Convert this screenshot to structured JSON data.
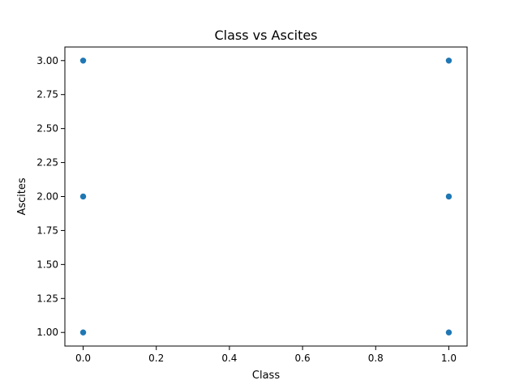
{
  "chart_data": {
    "type": "scatter",
    "title": "Class vs Ascites",
    "xlabel": "Class",
    "ylabel": "Ascites",
    "xlim": [
      -0.05,
      1.05
    ],
    "ylim": [
      0.9,
      3.1
    ],
    "xticks": [
      0.0,
      0.2,
      0.4,
      0.6,
      0.8,
      1.0
    ],
    "xtick_labels": [
      "0.0",
      "0.2",
      "0.4",
      "0.6",
      "0.8",
      "1.0"
    ],
    "yticks": [
      1.0,
      1.25,
      1.5,
      1.75,
      2.0,
      2.25,
      2.5,
      2.75,
      3.0
    ],
    "ytick_labels": [
      "1.00",
      "1.25",
      "1.50",
      "1.75",
      "2.00",
      "2.25",
      "2.50",
      "2.75",
      "3.00"
    ],
    "grid": false,
    "series": [
      {
        "color": "#1f77b4",
        "points": [
          {
            "x": 0,
            "y": 3
          },
          {
            "x": 0,
            "y": 2
          },
          {
            "x": 0,
            "y": 1
          },
          {
            "x": 1,
            "y": 3
          },
          {
            "x": 1,
            "y": 2
          },
          {
            "x": 1,
            "y": 1
          }
        ]
      }
    ]
  }
}
